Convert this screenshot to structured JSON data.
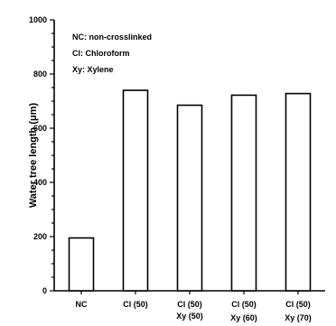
{
  "chart_data": {
    "type": "bar",
    "categories": [
      [
        "NC"
      ],
      [
        "Cl (50)"
      ],
      [
        "Cl (50)",
        "Xy (50)"
      ],
      [
        "Cl (50)",
        "Xy (60)"
      ],
      [
        "Cl (50)",
        "Xy (70)"
      ]
    ],
    "values": [
      195,
      740,
      685,
      722,
      728
    ],
    "ylabel": "Water tree length (μm)",
    "ylim": [
      0,
      1000
    ],
    "yticks": [
      0,
      200,
      400,
      600,
      800,
      1000
    ],
    "legend_box": [
      "NC: non-crosslinked",
      "Cl: Chloroform",
      "Xy: Xylene"
    ],
    "bar_fill": "#ffffff",
    "bar_stroke": "#000000"
  }
}
